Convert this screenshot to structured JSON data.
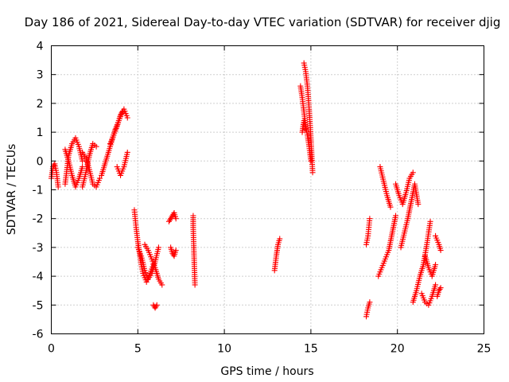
{
  "chart_data": {
    "type": "scatter",
    "title": "Day 186 of 2021, Sidereal Day-to-day VTEC variation (SDTVAR) for receiver djig",
    "xlabel": "GPS time / hours",
    "ylabel": "SDTVAR / TECUs",
    "xlim": [
      0,
      25
    ],
    "ylim": [
      -6,
      4
    ],
    "xticks": [
      0,
      5,
      10,
      15,
      20,
      25
    ],
    "yticks": [
      -6,
      -5,
      -4,
      -3,
      -2,
      -1,
      0,
      1,
      2,
      3,
      4
    ],
    "grid": true,
    "marker": "+",
    "color": "#ff0000",
    "segments": [
      {
        "x": [
          0.0,
          0.1,
          0.2,
          0.3,
          0.4
        ],
        "y": [
          -0.6,
          -0.2,
          -0.1,
          -0.4,
          -0.9
        ]
      },
      {
        "x": [
          0.8,
          0.9,
          1.0,
          1.2,
          1.4,
          1.6,
          1.8
        ],
        "y": [
          -0.8,
          -0.3,
          0.2,
          0.6,
          0.8,
          0.5,
          0.0
        ]
      },
      {
        "x": [
          0.8,
          1.0,
          1.2,
          1.4,
          1.6,
          1.8
        ],
        "y": [
          0.4,
          0.0,
          -0.5,
          -0.9,
          -0.6,
          -0.2
        ]
      },
      {
        "x": [
          1.8,
          2.0,
          2.2,
          2.4,
          2.6
        ],
        "y": [
          -0.9,
          -0.4,
          0.2,
          0.6,
          0.5
        ]
      },
      {
        "x": [
          1.8,
          2.0,
          2.2,
          2.4,
          2.6,
          2.8
        ],
        "y": [
          0.3,
          0.1,
          -0.3,
          -0.8,
          -0.9,
          -0.6
        ]
      },
      {
        "x": [
          2.9,
          3.1,
          3.3,
          3.5,
          3.7,
          3.9,
          4.1
        ],
        "y": [
          -0.5,
          -0.1,
          0.3,
          0.7,
          1.1,
          1.4,
          1.7
        ]
      },
      {
        "x": [
          3.4,
          3.6,
          3.8,
          4.0,
          4.2,
          4.4
        ],
        "y": [
          0.6,
          0.9,
          1.2,
          1.6,
          1.8,
          1.5
        ]
      },
      {
        "x": [
          3.8,
          4.0,
          4.2,
          4.4
        ],
        "y": [
          -0.2,
          -0.5,
          -0.2,
          0.3
        ]
      },
      {
        "x": [
          4.8,
          4.9,
          5.0,
          5.1,
          5.2,
          5.3,
          5.5,
          5.7,
          5.9
        ],
        "y": [
          -1.7,
          -2.3,
          -2.8,
          -3.2,
          -3.6,
          -3.9,
          -4.2,
          -3.9,
          -3.6
        ]
      },
      {
        "x": [
          5.0,
          5.2,
          5.4,
          5.6,
          5.8,
          6.0,
          6.2
        ],
        "y": [
          -3.0,
          -3.3,
          -3.8,
          -4.1,
          -3.9,
          -3.5,
          -3.0
        ]
      },
      {
        "x": [
          5.4,
          5.6,
          5.8,
          6.0,
          6.2,
          6.4
        ],
        "y": [
          -2.9,
          -3.1,
          -3.4,
          -3.7,
          -4.1,
          -4.3
        ]
      },
      {
        "x": [
          5.9,
          6.0,
          6.1
        ],
        "y": [
          -5.0,
          -5.1,
          -5.0
        ]
      },
      {
        "x": [
          6.8,
          6.9,
          7.0,
          7.1,
          7.2
        ],
        "y": [
          -2.1,
          -2.0,
          -1.9,
          -1.8,
          -2.0
        ]
      },
      {
        "x": [
          6.9,
          7.0,
          7.1,
          7.2
        ],
        "y": [
          -3.0,
          -3.2,
          -3.3,
          -3.1
        ]
      },
      {
        "x": [
          8.2,
          8.2,
          8.3
        ],
        "y": [
          -1.9,
          -2.3,
          -4.3
        ]
      },
      {
        "x": [
          12.9,
          13.0,
          13.1,
          13.2
        ],
        "y": [
          -3.8,
          -3.3,
          -2.9,
          -2.7
        ]
      },
      {
        "x": [
          14.4,
          14.5,
          14.6,
          14.7,
          14.8,
          14.9,
          15.0
        ],
        "y": [
          2.6,
          2.2,
          1.7,
          1.2,
          0.9,
          0.5,
          0.0
        ]
      },
      {
        "x": [
          14.6,
          14.7,
          14.8,
          14.9,
          15.0,
          15.1
        ],
        "y": [
          3.4,
          3.1,
          2.6,
          1.8,
          0.8,
          -0.4
        ]
      },
      {
        "x": [
          14.5,
          14.6,
          14.7
        ],
        "y": [
          1.0,
          1.4,
          1.1
        ]
      },
      {
        "x": [
          18.2,
          18.3,
          18.4
        ],
        "y": [
          -5.4,
          -5.1,
          -4.9
        ]
      },
      {
        "x": [
          18.2,
          18.3,
          18.4
        ],
        "y": [
          -2.9,
          -2.6,
          -2.0
        ]
      },
      {
        "x": [
          18.9,
          19.1,
          19.3,
          19.5,
          19.7,
          19.9
        ],
        "y": [
          -4.0,
          -3.7,
          -3.4,
          -3.1,
          -2.5,
          -1.9
        ]
      },
      {
        "x": [
          19.0,
          19.2,
          19.4,
          19.6
        ],
        "y": [
          -0.2,
          -0.7,
          -1.2,
          -1.6
        ]
      },
      {
        "x": [
          19.9,
          20.1,
          20.3,
          20.5,
          20.7,
          20.9
        ],
        "y": [
          -0.8,
          -1.2,
          -1.5,
          -1.1,
          -0.6,
          -0.4
        ]
      },
      {
        "x": [
          20.2,
          20.4,
          20.6,
          20.8,
          21.0,
          21.2
        ],
        "y": [
          -3.0,
          -2.5,
          -2.0,
          -1.4,
          -0.8,
          -1.5
        ]
      },
      {
        "x": [
          20.9,
          21.1,
          21.3,
          21.5,
          21.7,
          21.9
        ],
        "y": [
          -4.9,
          -4.5,
          -4.0,
          -3.6,
          -2.9,
          -2.1
        ]
      },
      {
        "x": [
          21.4,
          21.6,
          21.8,
          22.0,
          22.2
        ],
        "y": [
          -4.6,
          -4.9,
          -5.0,
          -4.7,
          -4.3
        ]
      },
      {
        "x": [
          21.6,
          21.8,
          22.0,
          22.2
        ],
        "y": [
          -3.3,
          -3.7,
          -4.0,
          -3.6
        ]
      },
      {
        "x": [
          22.2,
          22.4,
          22.5
        ],
        "y": [
          -2.6,
          -2.9,
          -3.1
        ]
      },
      {
        "x": [
          22.3,
          22.4,
          22.5
        ],
        "y": [
          -4.7,
          -4.5,
          -4.4
        ]
      }
    ]
  }
}
